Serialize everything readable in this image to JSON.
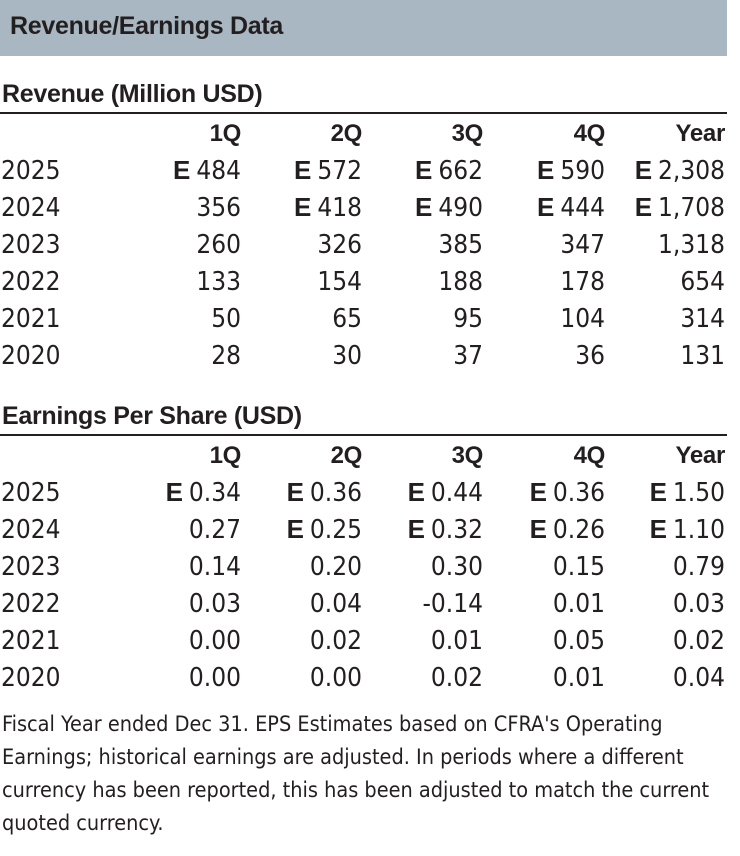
{
  "header": {
    "title": "Revenue/Earnings Data"
  },
  "revenue": {
    "title": "Revenue (Million USD)",
    "columns": [
      "",
      "1Q",
      "2Q",
      "3Q",
      "4Q",
      "Year"
    ],
    "estimate_marker": "E",
    "rows": [
      {
        "year": "2025",
        "cells": [
          {
            "value": "484",
            "est": "E"
          },
          {
            "value": "572",
            "est": "E"
          },
          {
            "value": "662",
            "est": "E"
          },
          {
            "value": "590",
            "est": "E"
          },
          {
            "value": "2,308",
            "est": "E"
          }
        ]
      },
      {
        "year": "2024",
        "cells": [
          {
            "value": "356",
            "est": ""
          },
          {
            "value": "418",
            "est": "E"
          },
          {
            "value": "490",
            "est": "E"
          },
          {
            "value": "444",
            "est": "E"
          },
          {
            "value": "1,708",
            "est": "E"
          }
        ]
      },
      {
        "year": "2023",
        "cells": [
          {
            "value": "260",
            "est": ""
          },
          {
            "value": "326",
            "est": ""
          },
          {
            "value": "385",
            "est": ""
          },
          {
            "value": "347",
            "est": ""
          },
          {
            "value": "1,318",
            "est": ""
          }
        ]
      },
      {
        "year": "2022",
        "cells": [
          {
            "value": "133",
            "est": ""
          },
          {
            "value": "154",
            "est": ""
          },
          {
            "value": "188",
            "est": ""
          },
          {
            "value": "178",
            "est": ""
          },
          {
            "value": "654",
            "est": ""
          }
        ]
      },
      {
        "year": "2021",
        "cells": [
          {
            "value": "50",
            "est": ""
          },
          {
            "value": "65",
            "est": ""
          },
          {
            "value": "95",
            "est": ""
          },
          {
            "value": "104",
            "est": ""
          },
          {
            "value": "314",
            "est": ""
          }
        ]
      },
      {
        "year": "2020",
        "cells": [
          {
            "value": "28",
            "est": ""
          },
          {
            "value": "30",
            "est": ""
          },
          {
            "value": "37",
            "est": ""
          },
          {
            "value": "36",
            "est": ""
          },
          {
            "value": "131",
            "est": ""
          }
        ]
      }
    ]
  },
  "eps": {
    "title": "Earnings Per Share (USD)",
    "columns": [
      "",
      "1Q",
      "2Q",
      "3Q",
      "4Q",
      "Year"
    ],
    "rows": [
      {
        "year": "2025",
        "cells": [
          {
            "value": "0.34",
            "est": "E"
          },
          {
            "value": "0.36",
            "est": "E"
          },
          {
            "value": "0.44",
            "est": "E"
          },
          {
            "value": "0.36",
            "est": "E"
          },
          {
            "value": "1.50",
            "est": "E"
          }
        ]
      },
      {
        "year": "2024",
        "cells": [
          {
            "value": "0.27",
            "est": ""
          },
          {
            "value": "0.25",
            "est": "E"
          },
          {
            "value": "0.32",
            "est": "E"
          },
          {
            "value": "0.26",
            "est": "E"
          },
          {
            "value": "1.10",
            "est": "E"
          }
        ]
      },
      {
        "year": "2023",
        "cells": [
          {
            "value": "0.14",
            "est": ""
          },
          {
            "value": "0.20",
            "est": ""
          },
          {
            "value": "0.30",
            "est": ""
          },
          {
            "value": "0.15",
            "est": ""
          },
          {
            "value": "0.79",
            "est": ""
          }
        ]
      },
      {
        "year": "2022",
        "cells": [
          {
            "value": "0.03",
            "est": ""
          },
          {
            "value": "0.04",
            "est": ""
          },
          {
            "value": "-0.14",
            "est": ""
          },
          {
            "value": "0.01",
            "est": ""
          },
          {
            "value": "0.03",
            "est": ""
          }
        ]
      },
      {
        "year": "2021",
        "cells": [
          {
            "value": "0.00",
            "est": ""
          },
          {
            "value": "0.02",
            "est": ""
          },
          {
            "value": "0.01",
            "est": ""
          },
          {
            "value": "0.05",
            "est": ""
          },
          {
            "value": "0.02",
            "est": ""
          }
        ]
      },
      {
        "year": "2020",
        "cells": [
          {
            "value": "0.00",
            "est": ""
          },
          {
            "value": "0.00",
            "est": ""
          },
          {
            "value": "0.02",
            "est": ""
          },
          {
            "value": "0.01",
            "est": ""
          },
          {
            "value": "0.04",
            "est": ""
          }
        ]
      }
    ]
  },
  "footnote": "Fiscal Year ended Dec 31. EPS Estimates based on CFRA's Operating Earnings; historical earnings are adjusted. In periods where a different currency has been reported, this has been adjusted to match the current quoted currency."
}
